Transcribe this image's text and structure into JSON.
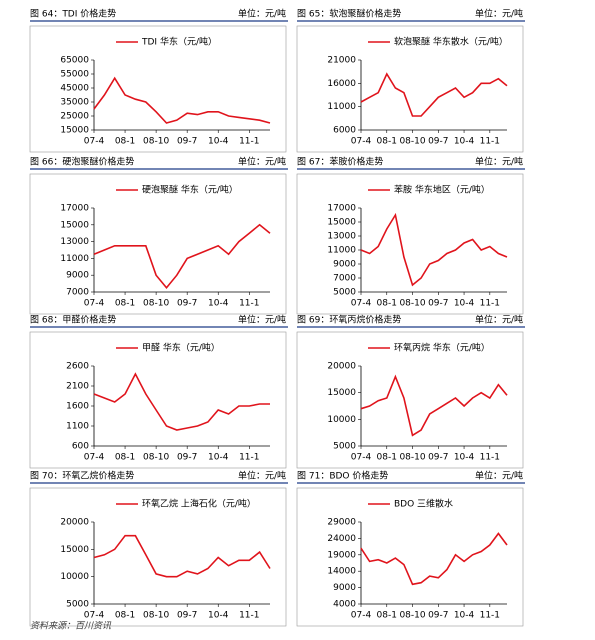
{
  "chart_data": [
    {
      "type": "line",
      "caption": "图 64：TDI 价格走势",
      "unit": "单位：元/吨",
      "categories": [
        "07-4",
        null,
        null,
        "08-1",
        null,
        null,
        "08-10",
        null,
        null,
        "09-7",
        null,
        null,
        "10-4",
        null,
        null,
        "11-1",
        null,
        null
      ],
      "series": [
        {
          "name": "TDI 华东（元/吨）",
          "color": "#e0141c",
          "values": [
            30000,
            40000,
            52000,
            40000,
            37000,
            35000,
            28000,
            20000,
            22000,
            27000,
            26000,
            28000,
            28000,
            25000,
            24000,
            23000,
            22000,
            20000
          ]
        }
      ],
      "ylim": [
        15000,
        65000
      ],
      "yticks": [
        15000,
        25000,
        35000,
        45000,
        55000,
        65000
      ]
    },
    {
      "type": "line",
      "caption": "图 65：软泡聚醚价格走势",
      "unit": "单位：元/吨",
      "categories": [
        "07-4",
        null,
        null,
        "08-1",
        null,
        null,
        "08-10",
        null,
        null,
        "09-7",
        null,
        null,
        "10-4",
        null,
        null,
        "11-1",
        null,
        null
      ],
      "series": [
        {
          "name": "软泡聚醚 华东散水（元/吨）",
          "color": "#e0141c",
          "values": [
            12000,
            13000,
            14000,
            18000,
            15000,
            14000,
            9000,
            9000,
            11000,
            13000,
            14000,
            15000,
            13000,
            14000,
            16000,
            16000,
            17000,
            15500
          ]
        }
      ],
      "ylim": [
        6000,
        21000
      ],
      "yticks": [
        6000,
        11000,
        16000,
        21000
      ]
    },
    {
      "type": "line",
      "caption": "图 66：硬泡聚醚价格走势",
      "unit": "单位：元/吨",
      "categories": [
        "07-4",
        null,
        null,
        "08-1",
        null,
        null,
        "08-10",
        null,
        null,
        "09-7",
        null,
        null,
        "10-4",
        null,
        null,
        "11-1",
        null,
        null
      ],
      "series": [
        {
          "name": "硬泡聚醚 华东（元/吨）",
          "color": "#e0141c",
          "values": [
            11500,
            12000,
            12500,
            12500,
            12500,
            12500,
            9000,
            7500,
            9000,
            11000,
            11500,
            12000,
            12500,
            11500,
            13000,
            14000,
            15000,
            14000
          ]
        }
      ],
      "ylim": [
        7000,
        17000
      ],
      "yticks": [
        7000,
        9000,
        11000,
        13000,
        15000,
        17000
      ]
    },
    {
      "type": "line",
      "caption": "图 67：苯胺价格走势",
      "unit": "单位：元/吨",
      "categories": [
        "07-4",
        null,
        null,
        "08-1",
        null,
        null,
        "08-10",
        null,
        null,
        "09-7",
        null,
        null,
        "10-4",
        null,
        null,
        "11-1",
        null,
        null
      ],
      "series": [
        {
          "name": "苯胺 华东地区（元/吨）",
          "color": "#e0141c",
          "values": [
            11000,
            10500,
            11500,
            14000,
            16000,
            10000,
            6000,
            7000,
            9000,
            9500,
            10500,
            11000,
            12000,
            12500,
            11000,
            11500,
            10500,
            10000
          ]
        }
      ],
      "ylim": [
        5000,
        17000
      ],
      "yticks": [
        5000,
        7000,
        9000,
        11000,
        13000,
        15000,
        17000
      ]
    },
    {
      "type": "line",
      "caption": "图 68：甲醛价格走势",
      "unit": "单位：元/吨",
      "categories": [
        "07-4",
        null,
        null,
        "08-1",
        null,
        null,
        "08-10",
        null,
        null,
        "09-7",
        null,
        null,
        "10-4",
        null,
        null,
        "11-1",
        null,
        null
      ],
      "series": [
        {
          "name": "甲醛 华东（元/吨）",
          "color": "#e0141c",
          "values": [
            1900,
            1800,
            1700,
            1900,
            2400,
            1900,
            1500,
            1100,
            1000,
            1050,
            1100,
            1200,
            1500,
            1400,
            1600,
            1600,
            1650,
            1650
          ]
        }
      ],
      "ylim": [
        600,
        2600
      ],
      "yticks": [
        600,
        1100,
        1600,
        2100,
        2600
      ]
    },
    {
      "type": "line",
      "caption": "图 69：环氧丙烷价格走势",
      "unit": "单位：元/吨",
      "categories": [
        "07-4",
        null,
        null,
        "08-1",
        null,
        null,
        "08-10",
        null,
        null,
        "09-7",
        null,
        null,
        "10-4",
        null,
        null,
        "11-1",
        null,
        null
      ],
      "series": [
        {
          "name": "环氧丙烷 华东（元/吨）",
          "color": "#e0141c",
          "values": [
            12000,
            12500,
            13500,
            14000,
            18000,
            14000,
            7000,
            8000,
            11000,
            12000,
            13000,
            14000,
            12500,
            14000,
            15000,
            14000,
            16500,
            14500
          ]
        }
      ],
      "ylim": [
        5000,
        20000
      ],
      "yticks": [
        5000,
        10000,
        15000,
        20000
      ]
    },
    {
      "type": "line",
      "caption": "图 70：环氧乙烷价格走势",
      "unit": "单位：元/吨",
      "categories": [
        "07-4",
        null,
        null,
        "08-1",
        null,
        null,
        "08-10",
        null,
        null,
        "09-7",
        null,
        null,
        "10-4",
        null,
        null,
        "11-1",
        null,
        null
      ],
      "series": [
        {
          "name": "环氧乙烷 上海石化（元/吨）",
          "color": "#e0141c",
          "values": [
            13500,
            14000,
            15000,
            17500,
            17500,
            14000,
            10500,
            10000,
            10000,
            11000,
            10500,
            11500,
            13500,
            12000,
            13000,
            13000,
            14500,
            11500
          ]
        }
      ],
      "ylim": [
        5000,
        20000
      ],
      "yticks": [
        5000,
        10000,
        15000,
        20000
      ]
    },
    {
      "type": "line",
      "caption": "图 71：BDO 价格走势",
      "unit": "单位：元/吨",
      "categories": [
        "07-4",
        null,
        null,
        "08-1",
        null,
        null,
        "08-10",
        null,
        null,
        "09-7",
        null,
        null,
        "10-4",
        null,
        null,
        "11-1",
        null,
        null
      ],
      "series": [
        {
          "name": "BDO 三维散水",
          "color": "#e0141c",
          "values": [
            21000,
            17000,
            17500,
            16500,
            18000,
            16000,
            10000,
            10500,
            12500,
            12000,
            14500,
            19000,
            17000,
            19000,
            20000,
            22000,
            25500,
            22000
          ]
        }
      ],
      "ylim": [
        4000,
        29000
      ],
      "yticks": [
        4000,
        9000,
        14000,
        19000,
        24000,
        29000
      ]
    }
  ],
  "source": "资料来源：百川资讯"
}
